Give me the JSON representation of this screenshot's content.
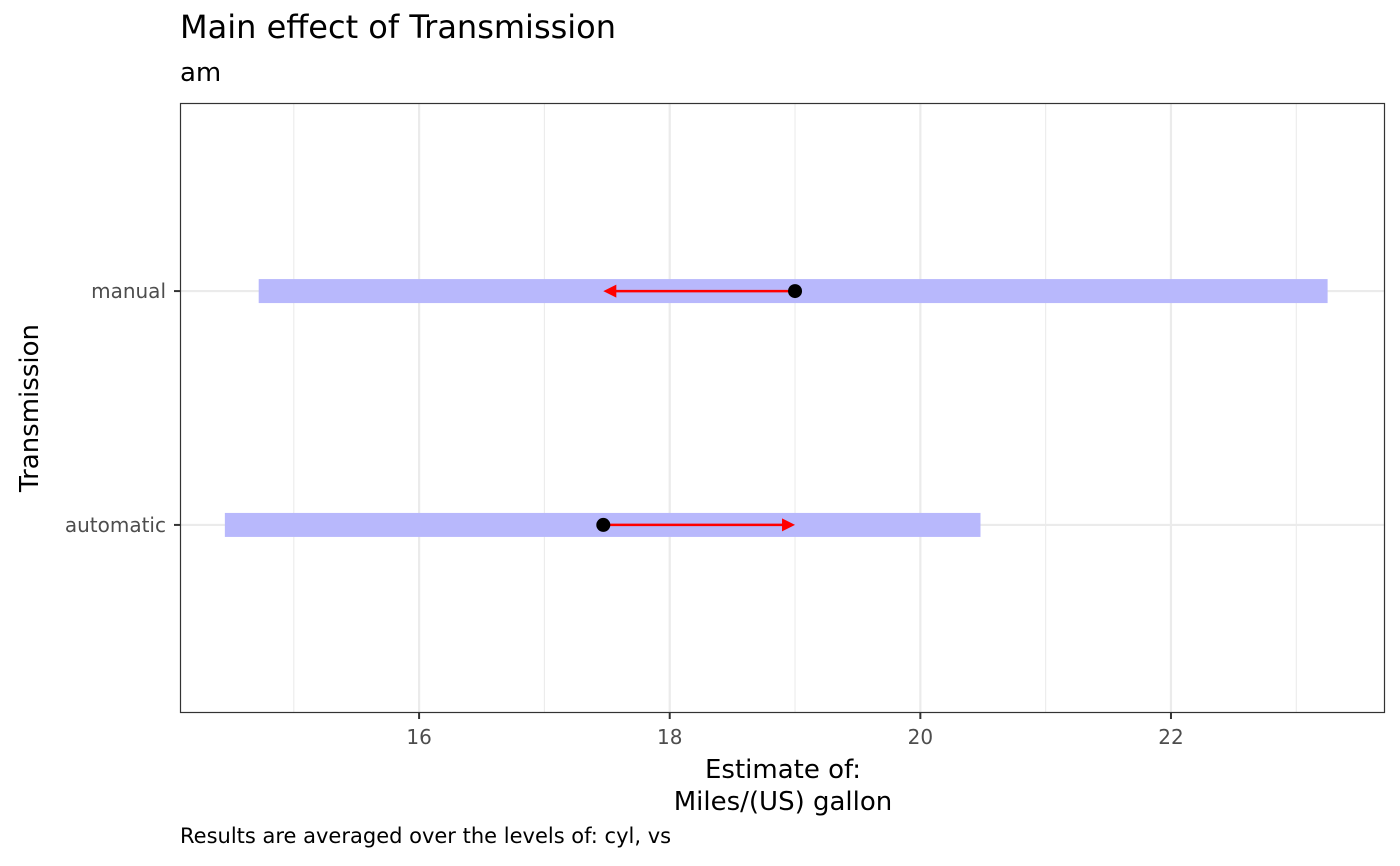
{
  "chart_data": {
    "type": "scatter",
    "title": "Main effect of Transmission",
    "subtitle": "am",
    "caption": "Results are averaged over the levels of: cyl, vs",
    "xlabel_lines": [
      "Estimate of:",
      "Miles/(US) gallon"
    ],
    "ylabel": "Transmission",
    "xlim": [
      14.1,
      23.7
    ],
    "x_ticks": [
      16,
      18,
      20,
      22
    ],
    "categories": [
      "automatic",
      "manual"
    ],
    "estimates": [
      {
        "level": "automatic",
        "estimate": 17.47,
        "ci_low": 14.45,
        "ci_high": 20.48
      },
      {
        "level": "manual",
        "estimate": 19.0,
        "ci_low": 14.72,
        "ci_high": 23.25
      }
    ],
    "arrows": [
      {
        "level": "automatic",
        "from": 17.47,
        "to": 19.0
      },
      {
        "level": "manual",
        "from": 19.0,
        "to": 17.47
      }
    ],
    "grid": true,
    "colors": {
      "ci_bar": "#b8b8fc",
      "arrow": "#ff0000",
      "point": "#000000",
      "grid": "#ebebeb",
      "panel_border": "#333333",
      "tick_label": "#4d4d4d"
    }
  }
}
